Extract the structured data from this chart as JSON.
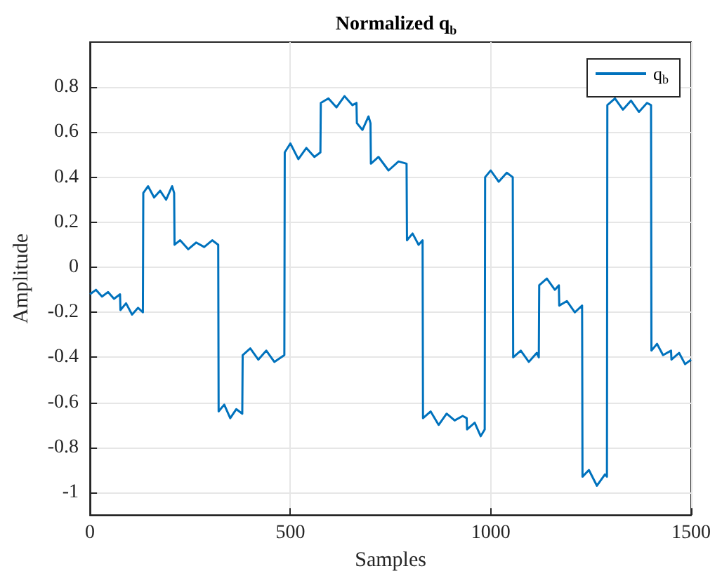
{
  "chart_data": {
    "type": "line",
    "title": "Normalized q$_{b}$",
    "xlabel": "Samples",
    "ylabel": "Amplitude",
    "x": [
      0,
      15,
      30,
      45,
      60,
      75,
      76,
      90,
      105,
      120,
      132,
      133,
      145,
      160,
      175,
      190,
      205,
      210,
      211,
      225,
      245,
      265,
      285,
      305,
      320,
      321,
      335,
      350,
      365,
      380,
      381,
      400,
      420,
      440,
      460,
      485,
      486,
      500,
      520,
      540,
      560,
      575,
      576,
      595,
      615,
      635,
      655,
      665,
      666,
      680,
      695,
      700,
      701,
      720,
      745,
      770,
      790,
      791,
      805,
      820,
      830,
      831,
      850,
      870,
      890,
      910,
      930,
      940,
      941,
      960,
      975,
      985,
      986,
      1000,
      1020,
      1040,
      1055,
      1056,
      1075,
      1095,
      1115,
      1120,
      1121,
      1140,
      1160,
      1170,
      1171,
      1190,
      1210,
      1228,
      1229,
      1245,
      1265,
      1285,
      1290,
      1291,
      1310,
      1330,
      1350,
      1370,
      1390,
      1400,
      1401,
      1415,
      1430,
      1450,
      1451,
      1470,
      1485,
      1500
    ],
    "series": [
      {
        "name": "q$_{b}$",
        "color": "#0072bd",
        "values": [
          -0.12,
          -0.1,
          -0.13,
          -0.11,
          -0.14,
          -0.12,
          -0.19,
          -0.16,
          -0.21,
          -0.18,
          -0.2,
          0.33,
          0.36,
          0.31,
          0.34,
          0.3,
          0.36,
          0.33,
          0.1,
          0.12,
          0.08,
          0.11,
          0.09,
          0.12,
          0.1,
          -0.64,
          -0.61,
          -0.67,
          -0.63,
          -0.65,
          -0.39,
          -0.36,
          -0.41,
          -0.37,
          -0.42,
          -0.39,
          0.51,
          0.55,
          0.48,
          0.53,
          0.49,
          0.51,
          0.73,
          0.75,
          0.71,
          0.76,
          0.72,
          0.73,
          0.64,
          0.61,
          0.67,
          0.64,
          0.46,
          0.49,
          0.43,
          0.47,
          0.46,
          0.12,
          0.15,
          0.1,
          0.12,
          -0.67,
          -0.64,
          -0.7,
          -0.65,
          -0.68,
          -0.66,
          -0.67,
          -0.72,
          -0.69,
          -0.75,
          -0.72,
          0.4,
          0.43,
          0.38,
          0.42,
          0.4,
          -0.4,
          -0.37,
          -0.42,
          -0.38,
          -0.4,
          -0.08,
          -0.05,
          -0.1,
          -0.08,
          -0.17,
          -0.15,
          -0.2,
          -0.17,
          -0.93,
          -0.9,
          -0.97,
          -0.92,
          -0.93,
          0.72,
          0.75,
          0.7,
          0.74,
          0.69,
          0.73,
          0.72,
          -0.37,
          -0.34,
          -0.39,
          -0.37,
          -0.41,
          -0.38,
          -0.43,
          -0.41
        ]
      }
    ],
    "xlim": [
      0,
      1500
    ],
    "xticks": [
      0,
      500,
      1000,
      1500
    ],
    "ylim": [
      -1.1,
      1
    ],
    "yticks": [
      -1,
      -0.8,
      -0.6,
      -0.4,
      -0.2,
      0,
      0.2,
      0.4,
      0.6,
      0.8
    ],
    "grid": true,
    "legend": "top right",
    "marker": "none",
    "line_style": "solid"
  }
}
